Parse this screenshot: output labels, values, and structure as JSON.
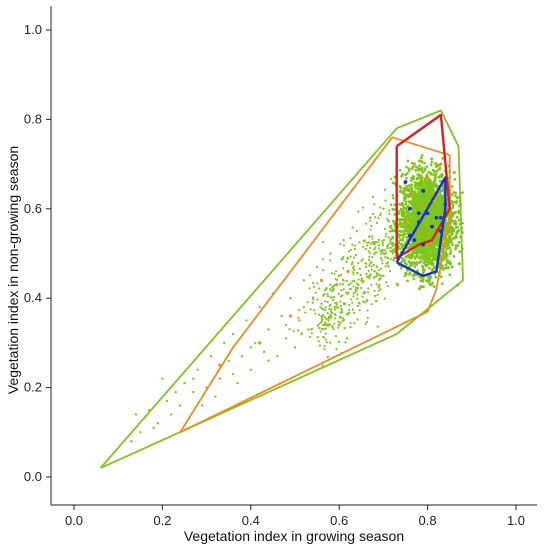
{
  "chart_data": {
    "type": "scatter",
    "title": "",
    "xlabel": "Vegetation index in growing season",
    "ylabel": "Vegetation index in non-growing season",
    "xlim": [
      -0.06,
      1.06
    ],
    "ylim": [
      -0.06,
      1.06
    ],
    "x_ticks": [
      0.0,
      0.2,
      0.4,
      0.6,
      0.8,
      1.0
    ],
    "y_ticks": [
      0.0,
      0.2,
      0.4,
      0.6,
      0.8,
      1.0
    ],
    "x_tick_labels": [
      "0.0",
      "0.2",
      "0.4",
      "0.6",
      "0.8",
      "1.0"
    ],
    "y_tick_labels": [
      "0.0",
      "0.2",
      "0.4",
      "0.6",
      "0.8",
      "1.0"
    ],
    "grid": false,
    "legend": "none",
    "colors": {
      "green": "#7ec61a",
      "orange": "#f08a1c",
      "red": "#e01b1b",
      "blue": "#1a2fd6"
    },
    "green_cluster": {
      "description_center": [
        0.8,
        0.57
      ],
      "x_range": [
        0.72,
        0.88
      ],
      "y_range": [
        0.42,
        0.72
      ]
    },
    "hulls": [
      {
        "color": "green",
        "points": [
          [
            0.06,
            0.02
          ],
          [
            0.73,
            0.78
          ],
          [
            0.83,
            0.82
          ],
          [
            0.87,
            0.74
          ],
          [
            0.88,
            0.44
          ],
          [
            0.73,
            0.32
          ],
          [
            0.06,
            0.02
          ]
        ]
      },
      {
        "color": "orange",
        "points": [
          [
            0.24,
            0.1
          ],
          [
            0.36,
            0.29
          ],
          [
            0.72,
            0.76
          ],
          [
            0.85,
            0.72
          ],
          [
            0.85,
            0.58
          ],
          [
            0.82,
            0.42
          ],
          [
            0.8,
            0.37
          ],
          [
            0.24,
            0.1
          ]
        ]
      },
      {
        "color": "red",
        "points": [
          [
            0.73,
            0.74
          ],
          [
            0.83,
            0.81
          ],
          [
            0.85,
            0.6
          ],
          [
            0.81,
            0.53
          ],
          [
            0.78,
            0.52
          ],
          [
            0.73,
            0.49
          ],
          [
            0.73,
            0.74
          ]
        ]
      },
      {
        "color": "blue",
        "points": [
          [
            0.73,
            0.48
          ],
          [
            0.79,
            0.45
          ],
          [
            0.82,
            0.46
          ],
          [
            0.84,
            0.6
          ],
          [
            0.84,
            0.67
          ],
          [
            0.73,
            0.48
          ]
        ]
      }
    ],
    "blue_points": [
      [
        0.75,
        0.66
      ],
      [
        0.79,
        0.64
      ],
      [
        0.76,
        0.6
      ],
      [
        0.78,
        0.59
      ],
      [
        0.8,
        0.59
      ],
      [
        0.82,
        0.58
      ],
      [
        0.78,
        0.57
      ],
      [
        0.83,
        0.58
      ],
      [
        0.81,
        0.56
      ],
      [
        0.83,
        0.55
      ],
      [
        0.76,
        0.54
      ],
      [
        0.77,
        0.53
      ],
      [
        0.79,
        0.52
      ],
      [
        0.84,
        0.61
      ]
    ],
    "orange_points": [
      [
        0.76,
        0.63
      ],
      [
        0.79,
        0.61
      ],
      [
        0.8,
        0.67
      ],
      [
        0.77,
        0.7
      ],
      [
        0.81,
        0.63
      ],
      [
        0.74,
        0.61
      ],
      [
        0.79,
        0.55
      ],
      [
        0.81,
        0.52
      ],
      [
        0.83,
        0.7
      ],
      [
        0.75,
        0.57
      ],
      [
        0.33,
        0.25
      ],
      [
        0.49,
        0.36
      ],
      [
        0.62,
        0.46
      ],
      [
        0.56,
        0.44
      ],
      [
        0.42,
        0.3
      ]
    ],
    "scattered_green_points": [
      [
        0.13,
        0.08
      ],
      [
        0.15,
        0.1
      ],
      [
        0.17,
        0.15
      ],
      [
        0.19,
        0.12
      ],
      [
        0.21,
        0.17
      ],
      [
        0.22,
        0.14
      ],
      [
        0.24,
        0.16
      ],
      [
        0.25,
        0.21
      ],
      [
        0.27,
        0.19
      ],
      [
        0.28,
        0.24
      ],
      [
        0.3,
        0.2
      ],
      [
        0.31,
        0.27
      ],
      [
        0.33,
        0.22
      ],
      [
        0.34,
        0.3
      ],
      [
        0.35,
        0.26
      ],
      [
        0.36,
        0.32
      ],
      [
        0.37,
        0.21
      ],
      [
        0.38,
        0.27
      ],
      [
        0.39,
        0.35
      ],
      [
        0.4,
        0.24
      ],
      [
        0.41,
        0.3
      ],
      [
        0.42,
        0.38
      ],
      [
        0.43,
        0.28
      ],
      [
        0.44,
        0.33
      ],
      [
        0.45,
        0.41
      ],
      [
        0.46,
        0.27
      ],
      [
        0.47,
        0.36
      ],
      [
        0.48,
        0.31
      ],
      [
        0.49,
        0.4
      ],
      [
        0.5,
        0.29
      ],
      [
        0.51,
        0.35
      ],
      [
        0.52,
        0.44
      ],
      [
        0.53,
        0.33
      ],
      [
        0.54,
        0.39
      ],
      [
        0.55,
        0.47
      ],
      [
        0.56,
        0.36
      ],
      [
        0.57,
        0.42
      ],
      [
        0.58,
        0.5
      ],
      [
        0.59,
        0.38
      ],
      [
        0.6,
        0.45
      ],
      [
        0.61,
        0.53
      ],
      [
        0.62,
        0.41
      ],
      [
        0.63,
        0.48
      ],
      [
        0.64,
        0.55
      ],
      [
        0.65,
        0.44
      ],
      [
        0.66,
        0.51
      ],
      [
        0.67,
        0.58
      ],
      [
        0.68,
        0.46
      ],
      [
        0.69,
        0.53
      ],
      [
        0.7,
        0.6
      ],
      [
        0.71,
        0.49
      ],
      [
        0.72,
        0.55
      ],
      [
        0.2,
        0.22
      ],
      [
        0.26,
        0.13
      ],
      [
        0.29,
        0.16
      ],
      [
        0.32,
        0.18
      ],
      [
        0.36,
        0.23
      ],
      [
        0.4,
        0.29
      ],
      [
        0.44,
        0.26
      ],
      [
        0.48,
        0.34
      ],
      [
        0.52,
        0.38
      ],
      [
        0.58,
        0.43
      ],
      [
        0.62,
        0.49
      ],
      [
        0.66,
        0.47
      ],
      [
        0.68,
        0.52
      ],
      [
        0.7,
        0.45
      ],
      [
        0.14,
        0.14
      ],
      [
        0.18,
        0.11
      ],
      [
        0.23,
        0.19
      ],
      [
        0.27,
        0.22
      ]
    ]
  }
}
